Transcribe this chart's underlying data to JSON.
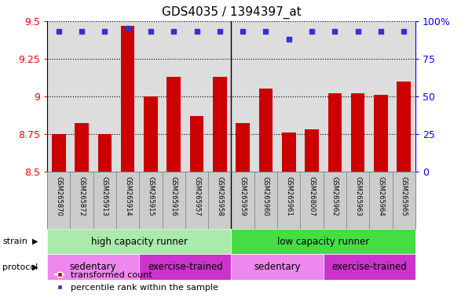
{
  "title": "GDS4035 / 1394397_at",
  "samples": [
    "GSM265870",
    "GSM265872",
    "GSM265913",
    "GSM265914",
    "GSM265915",
    "GSM265916",
    "GSM265957",
    "GSM265958",
    "GSM265959",
    "GSM265960",
    "GSM265961",
    "GSM268007",
    "GSM265962",
    "GSM265963",
    "GSM265964",
    "GSM265965"
  ],
  "bar_values": [
    8.75,
    8.82,
    8.75,
    9.47,
    9.0,
    9.13,
    8.87,
    9.13,
    8.82,
    9.05,
    8.76,
    8.78,
    9.02,
    9.02,
    9.01,
    9.1
  ],
  "percentile_values": [
    93,
    93,
    93,
    95,
    93,
    93,
    93,
    93,
    93,
    93,
    88,
    93,
    93,
    93,
    93,
    93
  ],
  "ylim_left": [
    8.5,
    9.5
  ],
  "ylim_right": [
    0,
    100
  ],
  "bar_color": "#cc0000",
  "dot_color": "#3333cc",
  "bar_bottom": 8.5,
  "strain_groups": [
    {
      "label": "high capacity runner",
      "start": 0,
      "end": 8,
      "color": "#aaeaaa"
    },
    {
      "label": "low capacity runner",
      "start": 8,
      "end": 16,
      "color": "#44dd44"
    }
  ],
  "protocol_groups": [
    {
      "label": "sedentary",
      "start": 0,
      "end": 4,
      "color": "#ee88ee"
    },
    {
      "label": "exercise-trained",
      "start": 4,
      "end": 8,
      "color": "#cc33cc"
    },
    {
      "label": "sedentary",
      "start": 8,
      "end": 12,
      "color": "#ee88ee"
    },
    {
      "label": "exercise-trained",
      "start": 12,
      "end": 16,
      "color": "#cc33cc"
    }
  ],
  "legend_bar_label": "transformed count",
  "legend_dot_label": "percentile rank within the sample",
  "strain_label": "strain",
  "protocol_label": "protocol",
  "yticks_left": [
    8.5,
    8.75,
    9.0,
    9.25,
    9.5
  ],
  "ytick_left_labels": [
    "8.5",
    "8.75",
    "9",
    "9.25",
    "9.5"
  ],
  "yticks_right": [
    0,
    25,
    50,
    75,
    100
  ],
  "ytick_right_labels": [
    "0",
    "25",
    "50",
    "75",
    "100%"
  ],
  "background_color": "#ffffff",
  "plot_bg_color": "#dddddd",
  "label_bg_color": "#cccccc"
}
